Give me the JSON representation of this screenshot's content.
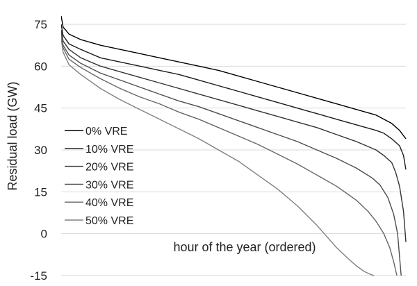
{
  "chart_data": {
    "type": "line",
    "title": "",
    "xlabel": "hour of the year (ordered)",
    "ylabel": "Residual load (GW)",
    "ylim": [
      -15,
      75
    ],
    "yticks": [
      75,
      60,
      45,
      30,
      15,
      0,
      -15
    ],
    "xlim": [
      0,
      8760
    ],
    "grid": true,
    "legend_position": "left",
    "series": [
      {
        "name": "0% VRE",
        "color": "#000000",
        "x": [
          0,
          50,
          200,
          500,
          1000,
          1500,
          2000,
          2500,
          3000,
          3500,
          4000,
          4500,
          5000,
          5500,
          6000,
          6500,
          7000,
          7500,
          8000,
          8200,
          8400,
          8600,
          8760
        ],
        "y": [
          78,
          74,
          71.5,
          69.5,
          67.5,
          66,
          64.5,
          63,
          61.5,
          60,
          58.5,
          56.5,
          54.5,
          52.5,
          50.5,
          48.5,
          46.5,
          44.5,
          42.5,
          41,
          39.5,
          37,
          34
        ]
      },
      {
        "name": "10% VRE",
        "color": "#1a1a1a",
        "x": [
          0,
          50,
          200,
          500,
          1000,
          1500,
          2000,
          2500,
          3000,
          3500,
          4000,
          4500,
          5000,
          5500,
          6000,
          6500,
          7000,
          7500,
          8000,
          8200,
          8400,
          8600,
          8700,
          8760
        ],
        "y": [
          75,
          71,
          68,
          66,
          63,
          61.5,
          60,
          58.5,
          57,
          55,
          53,
          51,
          49,
          47,
          45,
          43,
          41,
          39,
          37,
          36,
          34,
          31.5,
          28,
          23
        ]
      },
      {
        "name": "20% VRE",
        "color": "#333333",
        "x": [
          0,
          50,
          200,
          500,
          1000,
          1500,
          2000,
          2500,
          3000,
          3500,
          4000,
          4500,
          5000,
          5500,
          6000,
          6500,
          7000,
          7500,
          8000,
          8200,
          8400,
          8500,
          8600,
          8700,
          8760
        ],
        "y": [
          73,
          69,
          66,
          63,
          60,
          58,
          56,
          54,
          52,
          50,
          48,
          46,
          44,
          42,
          40,
          38,
          35.5,
          33,
          30,
          28,
          25.5,
          22,
          17,
          8,
          -3
        ]
      },
      {
        "name": "30% VRE",
        "color": "#4d4d4d",
        "x": [
          0,
          50,
          200,
          500,
          1000,
          1500,
          2000,
          2500,
          3000,
          3500,
          4000,
          4500,
          5000,
          5500,
          6000,
          6500,
          7000,
          7500,
          7900,
          8100,
          8300,
          8450,
          8550,
          8640
        ],
        "y": [
          72,
          67.5,
          64,
          61,
          57.5,
          55,
          52.5,
          50,
          47.5,
          45.5,
          43,
          40.5,
          38,
          35.5,
          33,
          30,
          27,
          23.5,
          20,
          17.5,
          13,
          7,
          0,
          -15
        ]
      },
      {
        "name": "40% VRE",
        "color": "#666666",
        "x": [
          0,
          50,
          200,
          500,
          1000,
          1500,
          2000,
          2500,
          3000,
          3500,
          4000,
          4500,
          5000,
          5500,
          6000,
          6500,
          7000,
          7500,
          7800,
          8000,
          8200,
          8350,
          8450,
          8530
        ],
        "y": [
          71,
          66.5,
          62.5,
          59.5,
          55.5,
          52,
          49,
          46.5,
          43.5,
          41,
          38,
          35,
          32,
          28.5,
          25,
          21,
          17,
          12,
          8,
          4.5,
          0,
          -5,
          -10,
          -15
        ]
      },
      {
        "name": "50% VRE",
        "color": "#808080",
        "x": [
          0,
          50,
          200,
          500,
          1000,
          1500,
          2000,
          2500,
          3000,
          3500,
          4000,
          4500,
          5000,
          5500,
          6000,
          6500,
          7000,
          7300,
          7500,
          7700,
          7850,
          7950
        ],
        "y": [
          70,
          65,
          60.5,
          57,
          52,
          48,
          44.5,
          41,
          37.5,
          34,
          30,
          26,
          21,
          16,
          10,
          3,
          -5,
          -9,
          -11.5,
          -13.5,
          -14.5,
          -15
        ]
      }
    ]
  }
}
